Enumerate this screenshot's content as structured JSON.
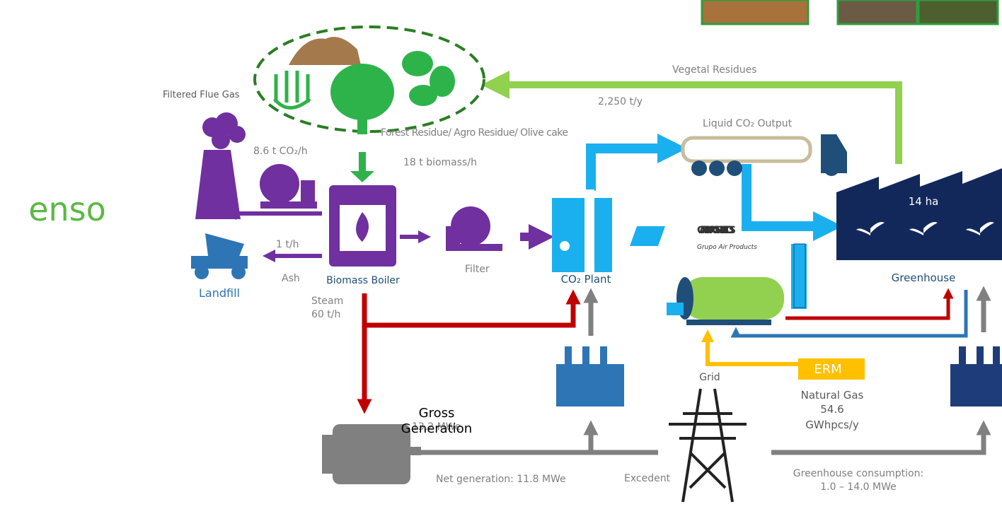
{
  "logo": "enso",
  "labels": {
    "filtered_flue_gas": "Filtered Flue Gas",
    "co2_emission": "8.6 t CO₂/h",
    "biomass_source": "Forest Residue/ Agro Residue/  Olive cake",
    "biomass_rate": "18 t biomass/h",
    "vegetal_residues": "Vegetal Residues",
    "vegetal_rate": "2,250 t/y",
    "liquid_co2": "Liquid CO₂ Output",
    "ash_rate": "1 t/h",
    "ash": "Ash",
    "landfill": "Landfill",
    "boiler": "Biomass Boiler",
    "filter": "Filter",
    "co2_plant": "CO₂ Plant",
    "carburos": "CARBUROS METALICOS",
    "carburos_sub": "Grupo Air Products",
    "greenhouse_area": "14 ha",
    "greenhouse": "Greenhouse",
    "steam": "Steam",
    "steam_rate": "60 t/h",
    "gross_generation": "Gross Generation",
    "gross_value": "13.2 MWe",
    "net_generation": "Net generation: 11.8 MWe",
    "excedent": "Excedent",
    "grid": "Grid",
    "erm": "ERM",
    "natural_gas": "Natural Gas",
    "natural_gas_value": "54.6",
    "natural_gas_unit": "GWhpcs/y",
    "greenhouse_consumption": "Greenhouse consumption:",
    "greenhouse_consumption_range": "1.0 – 14.0 MWe"
  }
}
